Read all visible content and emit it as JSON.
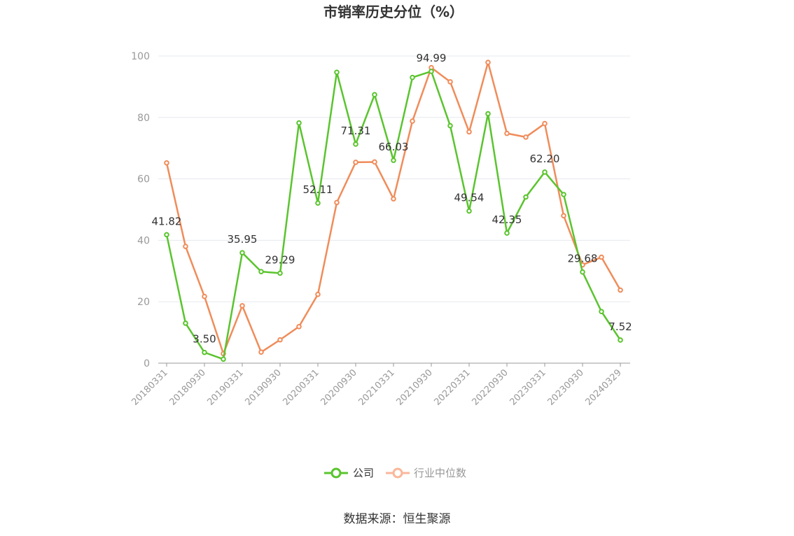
{
  "chart_data": {
    "type": "line",
    "title": "市销率历史分位（%）",
    "xlabel": "",
    "ylabel": "",
    "ylim": [
      0,
      100
    ],
    "yticks": [
      0,
      20,
      40,
      60,
      80,
      100
    ],
    "grid": true,
    "legend_position": "bottom-center",
    "x": [
      "20180331",
      "20180630",
      "20180930",
      "20181231",
      "20190331",
      "20190630",
      "20190930",
      "20191231",
      "20200331",
      "20200630",
      "20200930",
      "20201231",
      "20210331",
      "20210630",
      "20210930",
      "20211231",
      "20220331",
      "20220630",
      "20220930",
      "20221231",
      "20230331",
      "20230630",
      "20230930",
      "20231231",
      "20240329"
    ],
    "xtick_labels": [
      "20180331",
      "20180930",
      "20190331",
      "20190930",
      "20200331",
      "20200930",
      "20210331",
      "20210930",
      "20220331",
      "20220930",
      "20230331",
      "20230930",
      "20240329"
    ],
    "series": [
      {
        "name": "公司",
        "color": "#5ac42e",
        "values": [
          41.82,
          13.0,
          3.5,
          1.3,
          35.95,
          29.8,
          29.29,
          78.2,
          52.11,
          94.7,
          71.31,
          87.4,
          66.03,
          93.0,
          94.99,
          77.3,
          49.54,
          81.2,
          42.35,
          54.1,
          62.2,
          54.9,
          29.68,
          16.8,
          7.52
        ],
        "labels": [
          "41.82",
          null,
          "3.50",
          null,
          "35.95",
          null,
          "29.29",
          null,
          "52.11",
          null,
          "71.31",
          null,
          "66.03",
          null,
          "94.99",
          null,
          "49.54",
          null,
          "42.35",
          null,
          "62.20",
          null,
          "29.68",
          null,
          "7.52"
        ]
      },
      {
        "name": "行业中位数",
        "color": "#f08c5a",
        "values": [
          65.2,
          38.0,
          21.7,
          3.1,
          18.7,
          3.6,
          7.6,
          11.9,
          22.4,
          52.3,
          65.4,
          65.5,
          53.5,
          78.8,
          96.2,
          91.6,
          75.3,
          97.9,
          74.8,
          73.6,
          78.0,
          48.0,
          32.0,
          34.5,
          23.8
        ]
      }
    ]
  },
  "legend": {
    "items": [
      {
        "label": "公司",
        "color": "#5ac42e",
        "text_color": "#333333"
      },
      {
        "label": "行业中位数",
        "color": "#f9b79a",
        "text_color": "#999999"
      }
    ]
  },
  "footer": {
    "source": "数据来源：恒生聚源"
  },
  "colors": {
    "grid": "#e6e8ee",
    "axis": "#999999"
  }
}
